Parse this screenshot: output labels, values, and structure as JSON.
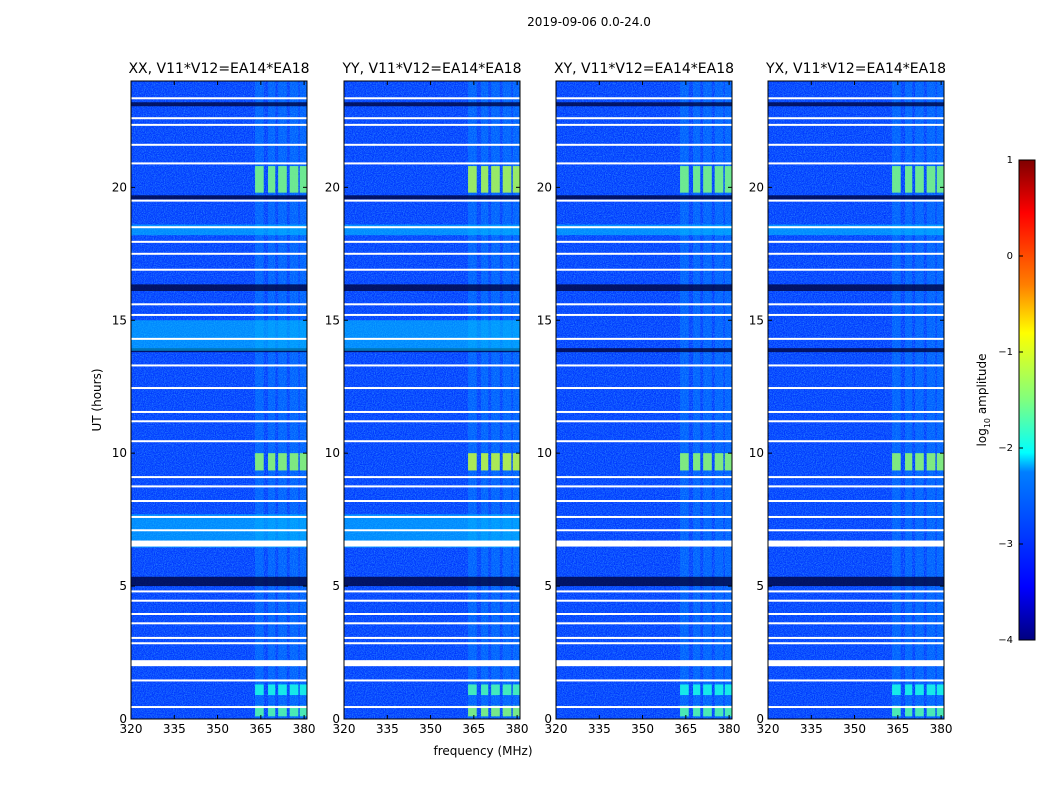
{
  "figure_title": "2019-09-06 0.0-24.0",
  "colors": {
    "cmap": [
      "#00007f",
      "#0000ff",
      "#007fff",
      "#00ffff",
      "#7fff7f",
      "#ffff00",
      "#ff7f00",
      "#ff0000",
      "#7f0000"
    ],
    "background": "#0a1ee6",
    "gap": "#ffffff",
    "dark_band": "#000540"
  },
  "chart_data": {
    "type": "heatmap",
    "figure_title": "2019-09-06 0.0-24.0",
    "xlabel": "frequency (MHz)",
    "ylabel": "UT (hours)",
    "xlim": [
      320,
      381
    ],
    "ylim": [
      0,
      24
    ],
    "x_ticks": [
      320,
      335,
      350,
      365,
      380
    ],
    "y_ticks": [
      0,
      5,
      10,
      15,
      20
    ],
    "panels": [
      {
        "title": "XX, V11*V12=EA14*EA18"
      },
      {
        "title": "YY, V11*V12=EA14*EA18"
      },
      {
        "title": "XY, V11*V12=EA14*EA18"
      },
      {
        "title": "YX, V11*V12=EA14*EA18"
      }
    ],
    "colorbar": {
      "label": "log10 amplitude",
      "range": [
        -4,
        1
      ],
      "ticks": [
        1,
        0,
        -1,
        -2,
        -3,
        -4
      ],
      "tick_labels": [
        "1",
        "0",
        "−1",
        "−2",
        "−3",
        "−4"
      ]
    },
    "flagged_time_gaps_hours": [
      0.45,
      1.45,
      2.15,
      2.85,
      3.05,
      3.6,
      3.95,
      4.45,
      4.8,
      6.6,
      7.1,
      7.6,
      8.2,
      8.75,
      9.1,
      10.45,
      11.2,
      11.55,
      12.45,
      13.3,
      14.3,
      15.2,
      15.6,
      16.9,
      17.5,
      17.95,
      18.5,
      19.5,
      20.9,
      21.6,
      22.35,
      22.6,
      23.35
    ],
    "dark_time_bands_hours": [
      [
        5.0,
        5.35
      ],
      [
        13.8,
        13.95
      ],
      [
        16.1,
        16.35
      ],
      [
        19.55,
        19.7
      ],
      [
        23.05,
        23.2
      ]
    ],
    "rfi_freq_bands_MHz": [
      [
        363,
        366
      ],
      [
        367.5,
        370
      ],
      [
        371,
        374
      ],
      [
        375,
        378
      ],
      [
        378.5,
        381
      ]
    ],
    "rfi_bursts": [
      {
        "time_range_hours": [
          0.1,
          0.5
        ],
        "log10_amplitude": -1.7
      },
      {
        "time_range_hours": [
          0.9,
          1.3
        ],
        "log10_amplitude": -2.0
      },
      {
        "time_range_hours": [
          9.35,
          10.0
        ],
        "log10_amplitude": -1.4
      },
      {
        "time_range_hours": [
          19.8,
          20.8
        ],
        "log10_amplitude": -1.5
      }
    ],
    "background_log10_amplitude": -3.1
  }
}
